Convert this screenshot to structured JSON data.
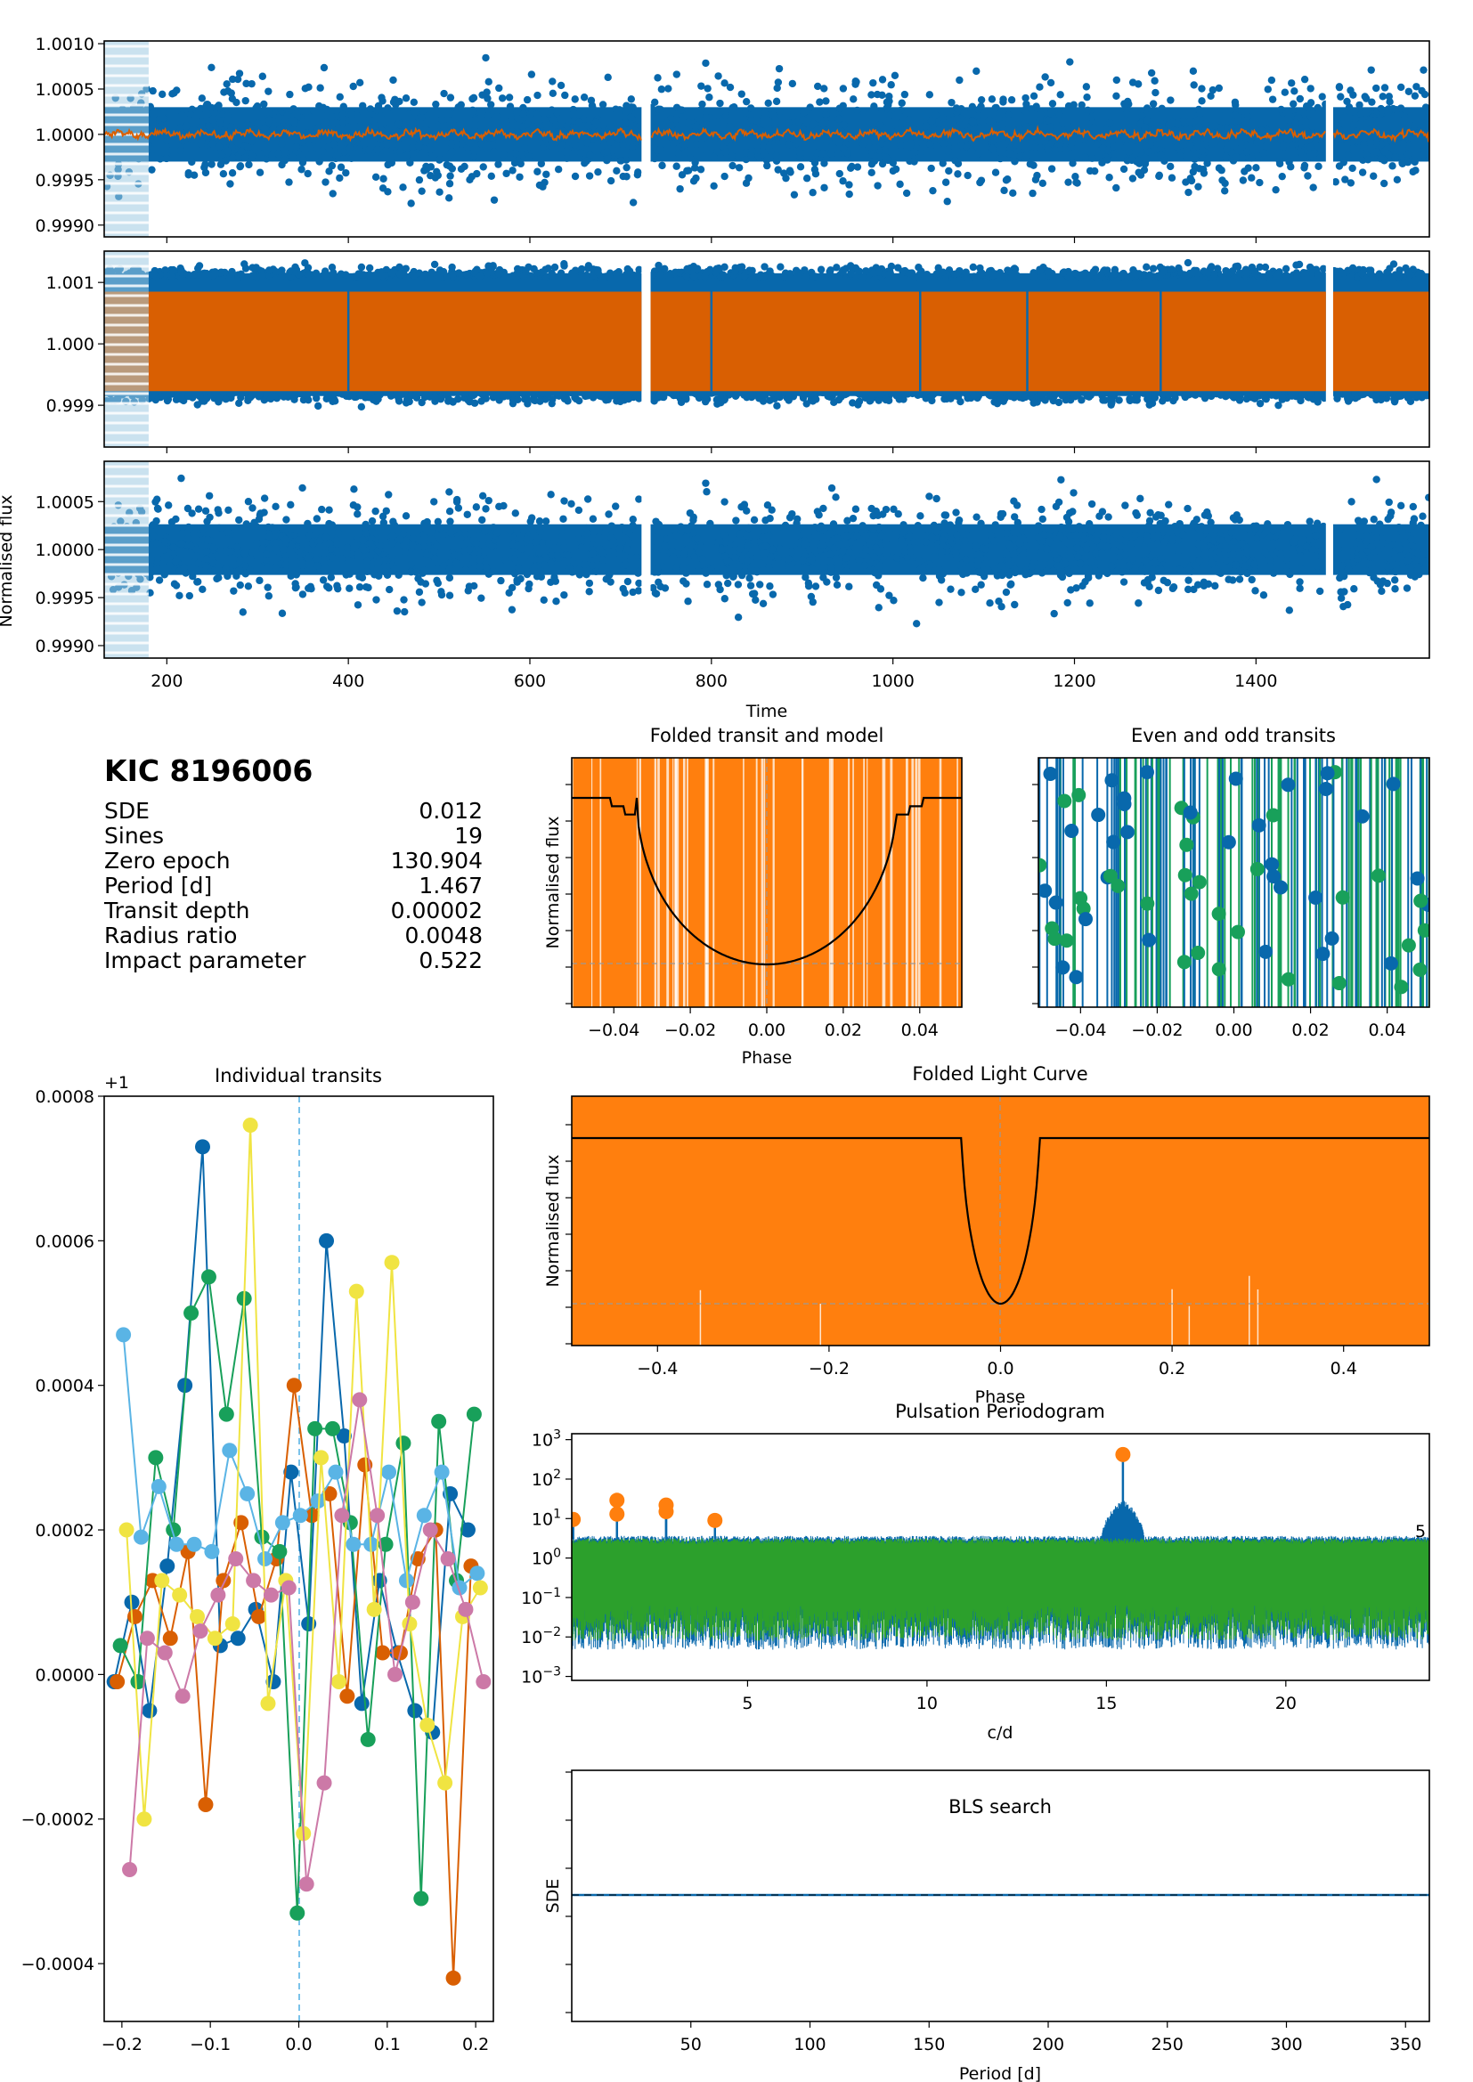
{
  "colors": {
    "data_blue": "#0868ac",
    "model_orange": "#d95f02",
    "fold_orange": "#ff7f0e",
    "green": "#2ca02c",
    "teal": "#18a05a",
    "black": "#000000",
    "grey": "#999999",
    "light_blue": "#9ecae1"
  },
  "info": {
    "target": "KIC 8196006",
    "rows": [
      {
        "label": "SDE",
        "value": "0.012"
      },
      {
        "label": "Sines",
        "value": "19"
      },
      {
        "label": "Zero epoch",
        "value": "130.904"
      },
      {
        "label": "Period [d]",
        "value": "1.467"
      },
      {
        "label": "Transit depth",
        "value": "0.00002"
      },
      {
        "label": "Radius ratio",
        "value": "0.0048"
      },
      {
        "label": "Impact parameter",
        "value": "0.522"
      }
    ]
  },
  "chart_data": [
    {
      "id": "lc_raw",
      "type": "scatter",
      "xlim": [
        131,
        1591
      ],
      "ylim": [
        0.99887,
        1.00103
      ],
      "yticks": [
        0.999,
        0.9995,
        1.0,
        1.0005,
        1.001
      ],
      "ytick_labels": [
        "0.9990",
        "0.9995",
        "1.0000",
        "1.0005",
        "1.0010"
      ],
      "xticks": [
        200,
        400,
        600,
        800,
        1000,
        1200,
        1400
      ],
      "gaps": [
        [
          723,
          733
        ],
        [
          1477,
          1485
        ]
      ],
      "masked_x_range": [
        131,
        180
      ],
      "series": [
        {
          "kind": "points",
          "color": "data_blue",
          "scatter_sd": 0.00025,
          "extreme_range": [
            0.99915,
            1.00095
          ]
        },
        {
          "kind": "line",
          "color": "model_orange",
          "amplitude": 5e-05
        }
      ]
    },
    {
      "id": "lc_sines",
      "type": "scatter",
      "xlim": [
        131,
        1591
      ],
      "ylim": [
        0.99832,
        1.00151
      ],
      "yticks": [
        0.999,
        1.0,
        1.001
      ],
      "ytick_labels": [
        "0.999",
        "1.000",
        "1.001"
      ],
      "xticks": [
        200,
        400,
        600,
        800,
        1000,
        1200,
        1400
      ],
      "gaps": [
        [
          723,
          733
        ],
        [
          1477,
          1485
        ]
      ],
      "masked_x_range": [
        131,
        180
      ],
      "series": [
        {
          "kind": "points",
          "color": "data_blue",
          "band": [
            0.99915,
            1.00115
          ]
        },
        {
          "kind": "band",
          "color": "model_orange",
          "band": [
            0.99923,
            1.00085
          ]
        }
      ]
    },
    {
      "id": "lc_residual",
      "type": "scatter",
      "xlim": [
        131,
        1591
      ],
      "ylim": [
        0.99887,
        1.00092
      ],
      "yticks": [
        0.999,
        0.9995,
        1.0,
        1.0005
      ],
      "ytick_labels": [
        "0.9990",
        "0.9995",
        "1.0000",
        "1.0005"
      ],
      "xticks": [
        200,
        400,
        600,
        800,
        1000,
        1200,
        1400
      ],
      "xtick_labels": [
        "200",
        "400",
        "600",
        "800",
        "1000",
        "1200",
        "1400"
      ],
      "xlabel": "Time",
      "ylabel": "Normalised flux",
      "gaps": [
        [
          723,
          733
        ],
        [
          1477,
          1485
        ]
      ],
      "masked_x_range": [
        131,
        180
      ],
      "series": [
        {
          "kind": "points",
          "color": "data_blue",
          "scatter_sd": 0.00022,
          "extreme_range": [
            0.99905,
            1.00085
          ]
        }
      ]
    },
    {
      "id": "folded_transit",
      "type": "line",
      "title": "Folded transit and model",
      "xlim": [
        -0.051,
        0.051
      ],
      "xticks": [
        -0.04,
        -0.02,
        0.0,
        0.02,
        0.04
      ],
      "xtick_labels": [
        "−0.04",
        "−0.02",
        "0.00",
        "0.02",
        "0.04"
      ],
      "xlabel": "Phase",
      "ylabel": "Normalised flux",
      "model": {
        "out_level": 1.0,
        "depth": 2e-05,
        "transit_half_width": 0.034
      },
      "series": [
        {
          "kind": "vertical-lines",
          "color": "fold_orange"
        },
        {
          "kind": "line",
          "color": "black"
        }
      ]
    },
    {
      "id": "even_odd",
      "type": "line",
      "title": "Even and odd transits",
      "xlim": [
        -0.051,
        0.051
      ],
      "xticks": [
        -0.04,
        -0.02,
        0.0,
        0.02,
        0.04
      ],
      "xtick_labels": [
        "−0.04",
        "−0.02",
        "0.00",
        "0.02",
        "0.04"
      ],
      "series": [
        {
          "kind": "vertical-lines",
          "color": "data_blue"
        },
        {
          "kind": "vertical-lines",
          "color": "teal"
        }
      ]
    },
    {
      "id": "individual_transits",
      "type": "line",
      "title": "Individual transits",
      "offset_label": "+1",
      "xlim": [
        -0.22,
        0.22
      ],
      "ylim": [
        -0.00048,
        0.0008
      ],
      "xticks": [
        -0.2,
        -0.1,
        0.0,
        0.1,
        0.2
      ],
      "xtick_labels": [
        "−0.2",
        "−0.1",
        "0.0",
        "0.1",
        "0.2"
      ],
      "yticks": [
        -0.0004,
        -0.0002,
        0.0,
        0.0002,
        0.0004,
        0.0006,
        0.0008
      ],
      "ytick_labels": [
        "−0.0004",
        "−0.0002",
        "0.0000",
        "0.0002",
        "0.0004",
        "0.0006",
        "0.0008"
      ],
      "x": [
        -0.2,
        -0.18,
        -0.16,
        -0.14,
        -0.12,
        -0.1,
        -0.08,
        -0.06,
        -0.04,
        -0.02,
        0.0,
        0.02,
        0.04,
        0.06,
        0.08,
        0.1,
        0.12,
        0.14,
        0.16,
        0.18,
        0.2
      ],
      "series": [
        {
          "color": "#0868ac",
          "values": [
            -1e-05,
            0.0001,
            -5e-05,
            0.00015,
            0.0004,
            0.00073,
            4e-05,
            5e-05,
            9e-05,
            -1e-05,
            0.00028,
            7e-05,
            0.0006,
            0.00033,
            -4e-05,
            0.00013,
            3e-05,
            -5e-05,
            -8e-05,
            0.00025,
            0.0002
          ]
        },
        {
          "color": "#d95f02",
          "values": [
            -1e-05,
            8e-05,
            0.00013,
            5e-05,
            0.00017,
            -0.00018,
            0.00013,
            0.00021,
            8e-05,
            0.00016,
            0.0004,
            0.00022,
            0.00025,
            -3e-05,
            0.00029,
            3e-05,
            3e-05,
            0.00016,
            0.0002,
            -0.00042,
            0.00015
          ]
        },
        {
          "color": "#18a05a",
          "values": [
            4e-05,
            -1e-05,
            0.0003,
            0.0002,
            0.0005,
            0.00055,
            0.00036,
            0.00052,
            0.00019,
            0.00017,
            -0.00033,
            0.00034,
            0.00034,
            0.00021,
            -9e-05,
            0.00018,
            0.00032,
            -0.00031,
            0.00035,
            0.00013,
            0.00036
          ]
        },
        {
          "color": "#5ab4e5",
          "values": [
            0.00047,
            0.00019,
            0.00026,
            0.00018,
            0.00018,
            0.00017,
            0.00031,
            0.00025,
            0.00016,
            0.00021,
            0.00022,
            0.00024,
            0.00028,
            0.00018,
            0.00018,
            0.00028,
            0.00013,
            0.00022,
            0.00028,
            0.00012,
            0.00014
          ]
        },
        {
          "color": "#f0e442",
          "values": [
            0.0002,
            -0.0002,
            0.00013,
            0.00011,
            8e-05,
            5e-05,
            7e-05,
            0.00076,
            -4e-05,
            0.00013,
            -0.00022,
            0.0003,
            -1e-05,
            0.00053,
            9e-05,
            0.00057,
            7e-05,
            -7e-05,
            -0.00015,
            8e-05,
            0.00012
          ]
        },
        {
          "color": "#cc79a7",
          "values": [
            -0.00027,
            5e-05,
            3e-05,
            -3e-05,
            6e-05,
            0.00011,
            0.00016,
            0.00013,
            0.00011,
            0.00012,
            -0.00029,
            -0.00015,
            0.00022,
            0.00038,
            0.00022,
            0.0,
            0.0001,
            0.0002,
            0.00016,
            9e-05,
            -1e-05
          ]
        }
      ]
    },
    {
      "id": "folded_lc",
      "type": "line",
      "title": "Folded Light Curve",
      "xlim": [
        -0.5,
        0.5
      ],
      "xticks": [
        -0.4,
        -0.2,
        0.0,
        0.2,
        0.4
      ],
      "xtick_labels": [
        "−0.4",
        "−0.2",
        "0.0",
        "0.2",
        "0.4"
      ],
      "xlabel": "Phase",
      "ylabel": "Normalised flux",
      "model": {
        "out_level": 1.0,
        "depth": 2e-05,
        "transit_half_width": 0.045
      },
      "series": [
        {
          "kind": "band",
          "color": "fold_orange"
        },
        {
          "kind": "line",
          "color": "black"
        }
      ]
    },
    {
      "id": "periodogram",
      "type": "line",
      "title": "Pulsation Periodogram",
      "xlim": [
        0.1,
        24
      ],
      "ylim_log10": [
        -3.1,
        3.15
      ],
      "log_y": true,
      "xticks": [
        5,
        10,
        15,
        20
      ],
      "xtick_labels": [
        "5",
        "10",
        "15",
        "20"
      ],
      "ytick_exponents": [
        -3,
        -2,
        -1,
        0,
        1,
        2,
        3
      ],
      "xlabel": "c/d",
      "side_label": "5",
      "peaks": [
        {
          "x": 0.14,
          "y": 9.5
        },
        {
          "x": 1.36,
          "y": 29
        },
        {
          "x": 1.36,
          "y": 13
        },
        {
          "x": 2.73,
          "y": 22
        },
        {
          "x": 2.73,
          "y": 15
        },
        {
          "x": 4.09,
          "y": 9
        },
        {
          "x": 15.46,
          "y": 420
        }
      ],
      "series": [
        {
          "name": "",
          "color": "data_blue"
        },
        {
          "name": "",
          "color": "green"
        }
      ]
    },
    {
      "id": "bls",
      "type": "line",
      "title": "BLS search",
      "xlim": [
        0,
        360
      ],
      "xticks": [
        50,
        100,
        150,
        200,
        250,
        300,
        350
      ],
      "xtick_labels": [
        "50",
        "100",
        "150",
        "200",
        "250",
        "300",
        "350"
      ],
      "xlabel": "Period [d]",
      "ylabel": "SDE",
      "sde_level": 0.0
    }
  ]
}
